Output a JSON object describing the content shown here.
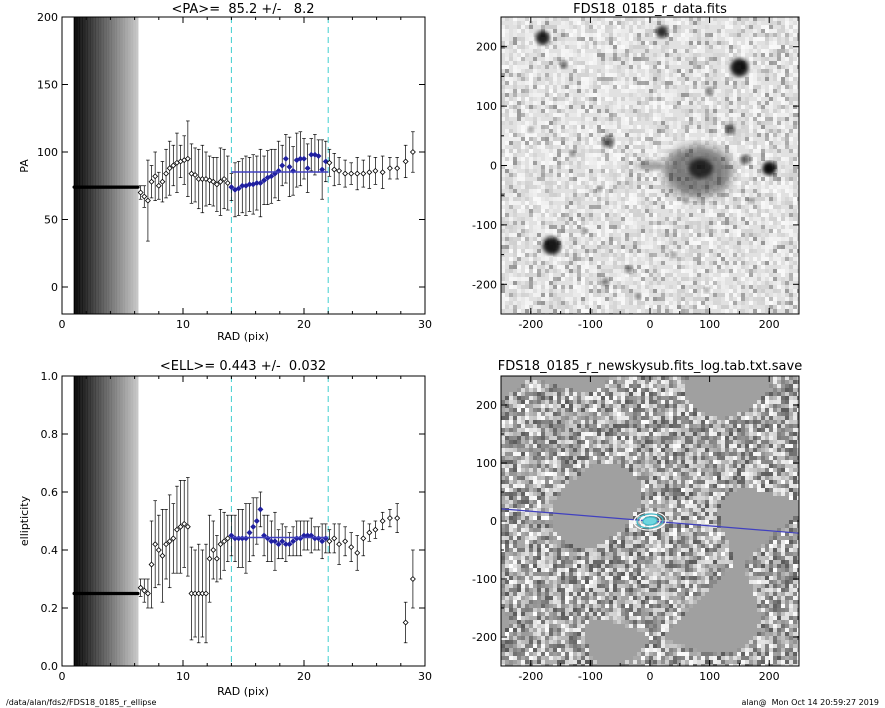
{
  "footer": {
    "left": "/data/alan/fds2/FDS18_0185_r_ellipse",
    "right": "alan@  Mon Oct 14 20:59:27 2019"
  },
  "colors": {
    "fit": "#4040c0",
    "marker": "#2020a0",
    "vline": "#40d0d0",
    "axis": "#000000"
  },
  "chart_data": [
    {
      "type": "scatter",
      "title": "<PA>=  85.2 +/-   8.2",
      "xlabel": "RAD (pix)",
      "ylabel": "PA",
      "xlim": [
        0,
        30
      ],
      "ylim": [
        -20,
        200
      ],
      "xticks": [
        0,
        10,
        20,
        30
      ],
      "yticks": [
        0,
        50,
        100,
        150,
        200
      ],
      "vlines": [
        14,
        22
      ],
      "fit": {
        "x": [
          14,
          22
        ],
        "y": 85.2
      },
      "inner_points": {
        "x_range": [
          1.0,
          6.3
        ],
        "y": 74,
        "err_high": 200,
        "err_low": -20
      },
      "points": {
        "x": [
          6.5,
          6.8,
          7.1,
          7.4,
          7.7,
          8.0,
          8.3,
          8.6,
          8.9,
          9.2,
          9.5,
          9.8,
          10.1,
          10.4,
          10.7,
          11.0,
          11.3,
          11.6,
          11.9,
          12.2,
          12.5,
          12.8,
          13.1,
          13.4,
          13.7,
          14.0,
          14.3,
          14.6,
          14.9,
          15.2,
          15.5,
          15.8,
          16.1,
          16.4,
          16.7,
          17.0,
          17.3,
          17.6,
          17.9,
          18.2,
          18.5,
          18.8,
          19.1,
          19.4,
          19.7,
          20.0,
          20.3,
          20.6,
          20.9,
          21.2,
          21.5,
          21.8,
          22.1,
          22.5,
          22.9,
          23.4,
          23.9,
          24.4,
          24.9,
          25.4,
          25.9,
          26.5,
          27.1,
          27.7,
          28.4,
          29.0
        ],
        "y": [
          70,
          67,
          64,
          78,
          82,
          75,
          78,
          84,
          88,
          90,
          92,
          93,
          94,
          95,
          84,
          83,
          80,
          80,
          80,
          79,
          78,
          76,
          78,
          80,
          77,
          74,
          72,
          73,
          75,
          75,
          76,
          76,
          77,
          77,
          79,
          81,
          82,
          84,
          86,
          90,
          95,
          89,
          86,
          94,
          95,
          95,
          88,
          98,
          98,
          97,
          87,
          93,
          92,
          87,
          86,
          84,
          84,
          84,
          84,
          85,
          86,
          85,
          88,
          88,
          93,
          100
        ],
        "err": [
          5,
          8,
          30,
          12,
          18,
          10,
          15,
          18,
          20,
          15,
          22,
          12,
          18,
          28,
          22,
          20,
          22,
          25,
          20,
          18,
          18,
          20,
          25,
          22,
          20,
          10,
          20,
          20,
          20,
          22,
          20,
          22,
          20,
          25,
          18,
          20,
          20,
          18,
          22,
          15,
          18,
          22,
          18,
          20,
          20,
          15,
          18,
          12,
          15,
          12,
          22,
          15,
          10,
          12,
          10,
          10,
          8,
          12,
          10,
          12,
          10,
          12,
          8,
          8,
          12,
          15
        ],
        "fit_range_color_x": [
          14,
          22
        ]
      }
    },
    {
      "type": "image",
      "title": "FDS18_0185_r_data.fits",
      "xlim": [
        -250,
        250
      ],
      "ylim": [
        -250,
        250
      ],
      "xticks": [
        -200,
        -100,
        0,
        100,
        200
      ],
      "yticks": [
        -200,
        -100,
        0,
        100,
        200
      ]
    },
    {
      "type": "scatter",
      "title": "<ELL>= 0.443 +/-  0.032",
      "xlabel": "RAD (pix)",
      "ylabel": "ellipticity",
      "xlim": [
        0,
        30
      ],
      "ylim": [
        0,
        1
      ],
      "xticks": [
        0,
        10,
        20,
        30
      ],
      "yticks": [
        0.0,
        0.2,
        0.4,
        0.6,
        0.8,
        1.0
      ],
      "vlines": [
        14,
        22
      ],
      "fit": {
        "x": [
          14,
          22
        ],
        "y": 0.443
      },
      "inner_points": {
        "x_range": [
          1.0,
          6.3
        ],
        "y": 0.25,
        "err_high": 1.0,
        "err_low": 0.0
      },
      "points": {
        "x": [
          6.5,
          6.8,
          7.1,
          7.4,
          7.7,
          8.0,
          8.3,
          8.6,
          8.9,
          9.2,
          9.5,
          9.8,
          10.1,
          10.4,
          10.7,
          11.0,
          11.3,
          11.6,
          11.9,
          12.2,
          12.5,
          12.8,
          13.1,
          13.4,
          13.7,
          14.0,
          14.3,
          14.6,
          14.9,
          15.2,
          15.5,
          15.8,
          16.1,
          16.4,
          16.7,
          17.0,
          17.3,
          17.6,
          17.9,
          18.2,
          18.5,
          18.8,
          19.1,
          19.4,
          19.7,
          20.0,
          20.3,
          20.6,
          20.9,
          21.2,
          21.5,
          21.8,
          22.1,
          22.5,
          22.9,
          23.4,
          23.9,
          24.4,
          24.9,
          25.4,
          25.9,
          26.5,
          27.1,
          27.7,
          28.4,
          29.0
        ],
        "y": [
          0.27,
          0.26,
          0.25,
          0.35,
          0.42,
          0.4,
          0.38,
          0.42,
          0.43,
          0.44,
          0.47,
          0.48,
          0.49,
          0.48,
          0.25,
          0.25,
          0.25,
          0.25,
          0.25,
          0.37,
          0.4,
          0.37,
          0.42,
          0.43,
          0.44,
          0.45,
          0.44,
          0.44,
          0.44,
          0.44,
          0.46,
          0.48,
          0.5,
          0.54,
          0.45,
          0.44,
          0.43,
          0.43,
          0.42,
          0.43,
          0.42,
          0.42,
          0.43,
          0.44,
          0.44,
          0.45,
          0.45,
          0.45,
          0.44,
          0.44,
          0.43,
          0.44,
          0.43,
          0.44,
          0.42,
          0.43,
          0.41,
          0.39,
          0.44,
          0.46,
          0.47,
          0.5,
          0.51,
          0.51,
          0.15,
          0.3
        ],
        "err": [
          0.03,
          0.04,
          0.05,
          0.15,
          0.15,
          0.12,
          0.16,
          0.12,
          0.16,
          0.12,
          0.15,
          0.16,
          0.15,
          0.17,
          0.16,
          0.15,
          0.17,
          0.15,
          0.17,
          0.15,
          0.1,
          0.08,
          0.12,
          0.1,
          0.08,
          0.07,
          0.08,
          0.1,
          0.1,
          0.12,
          0.1,
          0.1,
          0.08,
          0.06,
          0.07,
          0.08,
          0.07,
          0.1,
          0.05,
          0.06,
          0.06,
          0.04,
          0.05,
          0.06,
          0.06,
          0.05,
          0.05,
          0.06,
          0.04,
          0.04,
          0.06,
          0.05,
          0.04,
          0.05,
          0.07,
          0.05,
          0.05,
          0.06,
          0.06,
          0.03,
          0.03,
          0.03,
          0.03,
          0.05,
          0.07,
          0.1
        ]
      }
    },
    {
      "type": "image",
      "title": "FDS18_0185_r_newskysub.fits_log.tab.txt.save",
      "xlim": [
        -250,
        250
      ],
      "ylim": [
        -250,
        250
      ],
      "xticks": [
        -200,
        -100,
        0,
        100,
        200
      ],
      "yticks": [
        -200,
        -100,
        0,
        100,
        200
      ],
      "pa_line_deg": 85.2
    }
  ]
}
